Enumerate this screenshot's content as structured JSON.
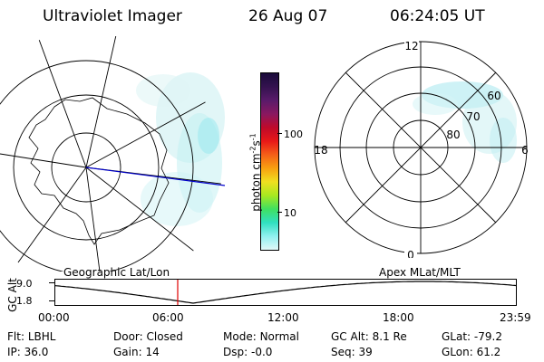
{
  "header": {
    "title": "Ultraviolet Imager",
    "date": "26 Aug 07",
    "time": "06:24:05 UT"
  },
  "left_map": {
    "caption": "Geographic Lat/Lon"
  },
  "right_map": {
    "caption": "Apex  MLat/MLT",
    "mlt_labels": {
      "top": "12",
      "bottom": "0",
      "left": "18",
      "right": "6"
    },
    "lat_labels": [
      "60",
      "70",
      "80"
    ]
  },
  "colorbar": {
    "unit_label": "photon cm",
    "unit_sup1": "-2",
    "unit_s": "s",
    "unit_sup2": "-1",
    "ticks": [
      "100",
      "10"
    ],
    "colors": [
      "#1a0b3a",
      "#34124f",
      "#5a1a6a",
      "#8a1860",
      "#c00a2a",
      "#e81818",
      "#f46018",
      "#f8a010",
      "#f0e020",
      "#a8e820",
      "#40e060",
      "#30e0c0",
      "#90f0f0",
      "#e0f8f8"
    ]
  },
  "timeline": {
    "axis_label": "GC Alt",
    "y_ticks": [
      "9.0",
      "1.8"
    ],
    "x_ticks": [
      "00:00",
      "06:00",
      "12:00",
      "18:00",
      "23:59"
    ],
    "marker_time": "06:24"
  },
  "status": {
    "row1": [
      {
        "label": "Flt:",
        "value": "LBHL"
      },
      {
        "label": "Door:",
        "value": "Closed"
      },
      {
        "label": "Mode:",
        "value": "Normal"
      },
      {
        "label": "GC Alt:",
        "value": "8.1 Re"
      },
      {
        "label": "GLat:",
        "value": "-79.2"
      }
    ],
    "row2": [
      {
        "label": "IP:",
        "value": "36.0"
      },
      {
        "label": "Gain:",
        "value": "14"
      },
      {
        "label": "Dsp:",
        "value": "-0.0"
      },
      {
        "label": "Seq:",
        "value": "39"
      },
      {
        "label": "GLon:",
        "value": "61.2"
      }
    ]
  }
}
